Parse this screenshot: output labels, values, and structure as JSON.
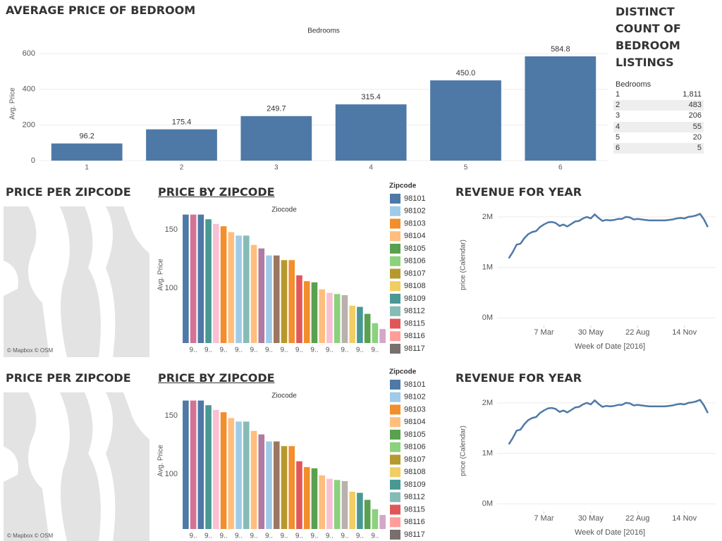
{
  "chart_data": [
    {
      "type": "bar",
      "title": "AVERAGE PRICE OF BEDROOM",
      "x_header": "Bedrooms",
      "y_label": "Avg. Price",
      "categories": [
        "1",
        "2",
        "3",
        "4",
        "5",
        "6"
      ],
      "values": [
        96.2,
        175.4,
        249.7,
        315.4,
        450.0,
        584.8
      ],
      "value_labels": [
        "96.2",
        "175.4",
        "249.7",
        "315.4",
        "450.0",
        "584.8"
      ],
      "color": "#4e79a7",
      "ylim": [
        0,
        640
      ],
      "yticks": [
        0,
        200,
        400,
        600
      ],
      "grid": true
    },
    {
      "type": "bar",
      "title": "PRICE BY ZIPCODE",
      "x_header": "Ziocode",
      "y_label": "Avg. Price",
      "categories": [
        null,
        "9..",
        null,
        "9..",
        null,
        "9..",
        null,
        "9..",
        null,
        "9..",
        null,
        "9..",
        null,
        "9..",
        null,
        "9..",
        null,
        "9..",
        null,
        "9..",
        null,
        "9..",
        null,
        "9..",
        null,
        "9..",
        null
      ],
      "values": [
        163,
        163,
        163,
        159,
        155,
        153,
        148,
        145,
        145,
        137,
        134,
        128,
        128,
        124,
        124,
        111,
        106,
        105,
        99,
        96,
        95,
        94,
        85,
        84,
        78,
        70,
        65
      ],
      "colors": [
        "#4e79a7",
        "#d37295",
        "#4e79a7",
        "#499894",
        "#fabfd2",
        "#f28e2b",
        "#ffbe7d",
        "#a0cbe8",
        "#86bcb6",
        "#ffbe7d",
        "#b07aa1",
        "#a0cbe8",
        "#9d7660",
        "#b6992d",
        "#f28e2b",
        "#e15759",
        "#f28e2b",
        "#59a14f",
        "#ffbe7d",
        "#fabfd2",
        "#8cd17d",
        "#bab0ac",
        "#f1ce63",
        "#499894",
        "#59a14f",
        "#8cd17d",
        "#d4a6c8"
      ],
      "ylim": [
        53,
        170
      ],
      "yticks": [
        100,
        150
      ],
      "legend_title": "Zipcode",
      "legend": [
        {
          "name": "98101",
          "color": "#4e79a7"
        },
        {
          "name": "98102",
          "color": "#a0cbe8"
        },
        {
          "name": "98103",
          "color": "#f28e2b"
        },
        {
          "name": "98104",
          "color": "#ffbe7d"
        },
        {
          "name": "98105",
          "color": "#59a14f"
        },
        {
          "name": "98106",
          "color": "#8cd17d"
        },
        {
          "name": "98107",
          "color": "#b6992d"
        },
        {
          "name": "98108",
          "color": "#f1ce63"
        },
        {
          "name": "98109",
          "color": "#499894"
        },
        {
          "name": "98112",
          "color": "#86bcb6"
        },
        {
          "name": "98115",
          "color": "#e15759"
        },
        {
          "name": "98116",
          "color": "#ff9d9a"
        },
        {
          "name": "98117",
          "color": "#79706e"
        }
      ]
    },
    {
      "type": "line",
      "title": "REVENUE FOR YEAR",
      "x_label": "Week of Date [2016]",
      "y_label": "price (Calendar)",
      "x": [
        0,
        1,
        2,
        3,
        4,
        5,
        6,
        7,
        8,
        9,
        10,
        11,
        12,
        13,
        14,
        15,
        16,
        17,
        18,
        19,
        20,
        21,
        22,
        23,
        24,
        25,
        26,
        27,
        28,
        29,
        30,
        31,
        32,
        33,
        34,
        35,
        36,
        37,
        38,
        39,
        40,
        41,
        42,
        43,
        44,
        45,
        46,
        47,
        48,
        49,
        50,
        51
      ],
      "values": [
        1180000,
        1300000,
        1450000,
        1470000,
        1580000,
        1660000,
        1700000,
        1720000,
        1800000,
        1850000,
        1890000,
        1900000,
        1880000,
        1820000,
        1850000,
        1810000,
        1860000,
        1910000,
        1920000,
        1970000,
        2000000,
        1970000,
        2050000,
        1980000,
        1920000,
        1940000,
        1930000,
        1940000,
        1960000,
        1960000,
        2000000,
        1990000,
        1950000,
        1960000,
        1950000,
        1940000,
        1930000,
        1930000,
        1930000,
        1930000,
        1930000,
        1940000,
        1950000,
        1970000,
        1980000,
        1970000,
        2000000,
        2010000,
        2030000,
        2060000,
        1950000,
        1800000
      ],
      "color": "#4e79a7",
      "xlim": [
        -3,
        53
      ],
      "xticks": [
        {
          "value": 9,
          "label": "7 Mar"
        },
        {
          "value": 21,
          "label": "30 May"
        },
        {
          "value": 33,
          "label": "22 Aug"
        },
        {
          "value": 45,
          "label": "14 Nov"
        }
      ],
      "ylim": [
        -150000,
        2250000
      ],
      "yticks": [
        {
          "value": 0,
          "label": "0M"
        },
        {
          "value": 1000000,
          "label": "1M"
        },
        {
          "value": 2000000,
          "label": "2M"
        }
      ],
      "grid": true
    },
    {
      "type": "bar",
      "title": "PRICE BY ZIPCODE",
      "x_header": "Ziocode",
      "y_label": "Avg. Price",
      "categories": [
        null,
        "9..",
        null,
        "9..",
        null,
        "9..",
        null,
        "9..",
        null,
        "9..",
        null,
        "9..",
        null,
        "9..",
        null,
        "9..",
        null,
        "9..",
        null,
        "9..",
        null,
        "9..",
        null,
        "9..",
        null,
        "9..",
        null
      ],
      "values": [
        163,
        163,
        163,
        159,
        155,
        153,
        148,
        145,
        145,
        137,
        134,
        128,
        128,
        124,
        124,
        111,
        106,
        105,
        99,
        96,
        95,
        94,
        85,
        84,
        78,
        70,
        65
      ],
      "colors": [
        "#4e79a7",
        "#d37295",
        "#4e79a7",
        "#499894",
        "#fabfd2",
        "#f28e2b",
        "#ffbe7d",
        "#a0cbe8",
        "#86bcb6",
        "#ffbe7d",
        "#b07aa1",
        "#a0cbe8",
        "#9d7660",
        "#b6992d",
        "#f28e2b",
        "#e15759",
        "#f28e2b",
        "#59a14f",
        "#ffbe7d",
        "#fabfd2",
        "#8cd17d",
        "#bab0ac",
        "#f1ce63",
        "#499894",
        "#59a14f",
        "#8cd17d",
        "#d4a6c8"
      ],
      "ylim": [
        53,
        170
      ],
      "yticks": [
        100,
        150
      ],
      "legend_title": "Zipcode",
      "legend": [
        {
          "name": "98101",
          "color": "#4e79a7"
        },
        {
          "name": "98102",
          "color": "#a0cbe8"
        },
        {
          "name": "98103",
          "color": "#f28e2b"
        },
        {
          "name": "98104",
          "color": "#ffbe7d"
        },
        {
          "name": "98105",
          "color": "#59a14f"
        },
        {
          "name": "98106",
          "color": "#8cd17d"
        },
        {
          "name": "98107",
          "color": "#b6992d"
        },
        {
          "name": "98108",
          "color": "#f1ce63"
        },
        {
          "name": "98109",
          "color": "#499894"
        },
        {
          "name": "98112",
          "color": "#86bcb6"
        },
        {
          "name": "98115",
          "color": "#e15759"
        },
        {
          "name": "98116",
          "color": "#ff9d9a"
        },
        {
          "name": "98117",
          "color": "#79706e"
        }
      ]
    },
    {
      "type": "line",
      "title": "REVENUE FOR YEAR",
      "x_label": "Week of Date [2016]",
      "y_label": "price (Calendar)",
      "x": [
        0,
        1,
        2,
        3,
        4,
        5,
        6,
        7,
        8,
        9,
        10,
        11,
        12,
        13,
        14,
        15,
        16,
        17,
        18,
        19,
        20,
        21,
        22,
        23,
        24,
        25,
        26,
        27,
        28,
        29,
        30,
        31,
        32,
        33,
        34,
        35,
        36,
        37,
        38,
        39,
        40,
        41,
        42,
        43,
        44,
        45,
        46,
        47,
        48,
        49,
        50,
        51
      ],
      "values": [
        1180000,
        1300000,
        1450000,
        1470000,
        1580000,
        1660000,
        1700000,
        1720000,
        1800000,
        1850000,
        1890000,
        1900000,
        1880000,
        1820000,
        1850000,
        1810000,
        1860000,
        1910000,
        1920000,
        1970000,
        2000000,
        1970000,
        2050000,
        1980000,
        1920000,
        1940000,
        1930000,
        1940000,
        1960000,
        1960000,
        2000000,
        1990000,
        1950000,
        1960000,
        1950000,
        1940000,
        1930000,
        1930000,
        1930000,
        1930000,
        1930000,
        1940000,
        1950000,
        1970000,
        1980000,
        1970000,
        2000000,
        2010000,
        2030000,
        2060000,
        1950000,
        1800000
      ],
      "color": "#4e79a7",
      "xlim": [
        -3,
        53
      ],
      "xticks": [
        {
          "value": 9,
          "label": "7 Mar"
        },
        {
          "value": 21,
          "label": "30 May"
        },
        {
          "value": 33,
          "label": "22 Aug"
        },
        {
          "value": 45,
          "label": "14 Nov"
        }
      ],
      "ylim": [
        -150000,
        2250000
      ],
      "yticks": [
        {
          "value": 0,
          "label": "0M"
        },
        {
          "value": 1000000,
          "label": "1M"
        },
        {
          "value": 2000000,
          "label": "2M"
        }
      ],
      "grid": true
    }
  ],
  "table": {
    "title": "DISTINCT COUNT OF BEDROOM LISTINGS",
    "header": "Bedrooms",
    "rows": [
      [
        "1",
        "1,811"
      ],
      [
        "2",
        "483"
      ],
      [
        "3",
        "206"
      ],
      [
        "4",
        "55"
      ],
      [
        "5",
        "20"
      ],
      [
        "6",
        "5"
      ]
    ]
  },
  "maps": [
    {
      "title": "PRICE PER ZIPCODE",
      "attribution": "© Mapbox © OSM"
    },
    {
      "title": "PRICE PER ZIPCODE",
      "attribution": "© Mapbox © OSM"
    }
  ]
}
